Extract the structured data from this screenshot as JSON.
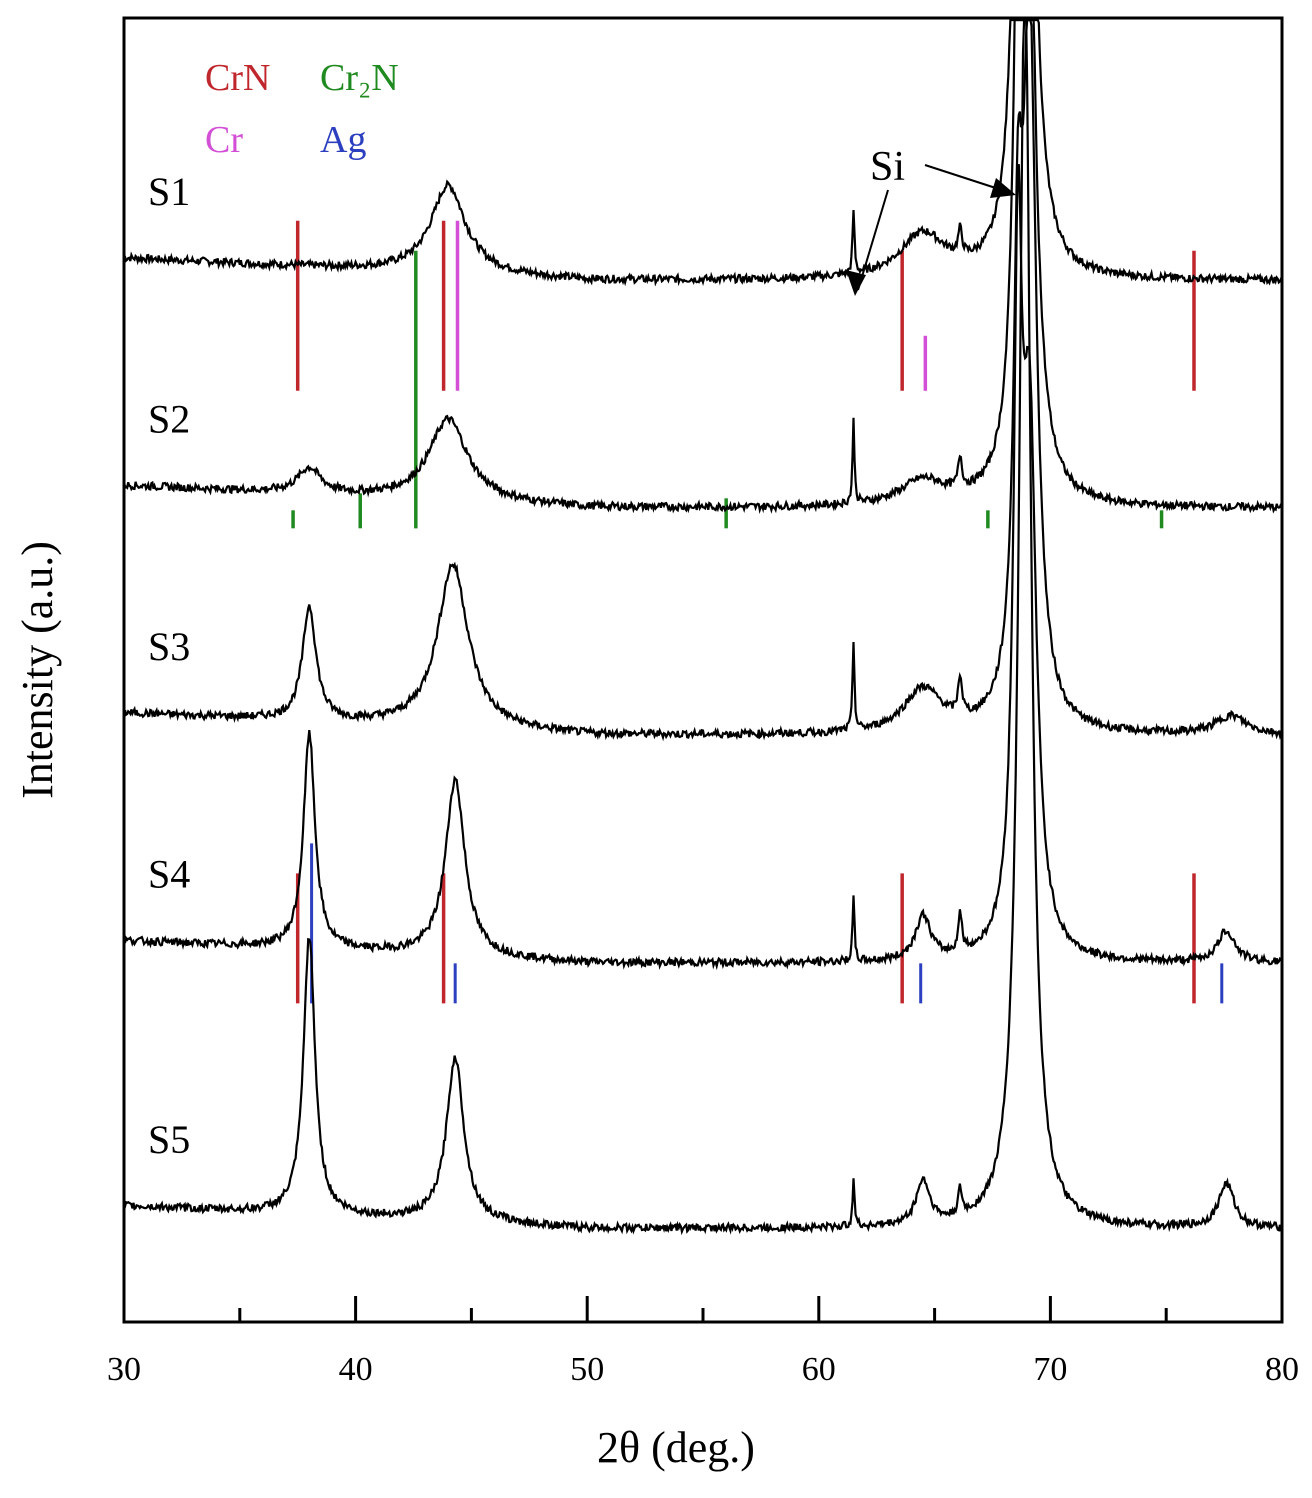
{
  "chart_data": {
    "type": "line",
    "title": "",
    "xlabel": "2θ (deg.)",
    "ylabel": "Intensity (a.u.)",
    "xlim": [
      30,
      80
    ],
    "x_ticks": [
      "30",
      "40",
      "50",
      "60",
      "70",
      "80"
    ],
    "legend": [
      {
        "name": "CrN",
        "color": "#c0272d"
      },
      {
        "name": "Cr₂N",
        "color": "#1f8a1f"
      },
      {
        "name": "Cr",
        "color": "#d24fd6"
      },
      {
        "name": "Ag",
        "color": "#2b3fbf"
      }
    ],
    "annotation": "Si",
    "series": [
      {
        "name": "S1",
        "baseline": 0.8,
        "peaks": [
          [
            44.0,
            0.07,
            0.9
          ],
          [
            61.5,
            0.05,
            0.05
          ],
          [
            64.5,
            0.035,
            1.2
          ],
          [
            66.1,
            0.02,
            0.1
          ],
          [
            68.6,
            0.35,
            0.22
          ],
          [
            69.0,
            0.55,
            0.35
          ]
        ]
      },
      {
        "name": "S2",
        "baseline": 0.62,
        "peaks": [
          [
            38.0,
            0.02,
            0.6
          ],
          [
            44.0,
            0.065,
            1.0
          ],
          [
            61.5,
            0.065,
            0.05
          ],
          [
            64.5,
            0.02,
            1.2
          ],
          [
            66.1,
            0.025,
            0.1
          ],
          [
            68.6,
            0.3,
            0.22
          ],
          [
            69.0,
            0.6,
            0.35
          ]
        ]
      },
      {
        "name": "S3",
        "baseline": 0.44,
        "peaks": [
          [
            38.0,
            0.09,
            0.35
          ],
          [
            44.2,
            0.13,
            0.8
          ],
          [
            61.5,
            0.07,
            0.05
          ],
          [
            64.5,
            0.035,
            1.0
          ],
          [
            66.1,
            0.03,
            0.1
          ],
          [
            68.6,
            0.3,
            0.22
          ],
          [
            69.1,
            0.55,
            0.35
          ],
          [
            77.8,
            0.015,
            0.8
          ]
        ]
      },
      {
        "name": "S4",
        "baseline": 0.26,
        "peaks": [
          [
            38.0,
            0.17,
            0.3
          ],
          [
            44.3,
            0.14,
            0.5
          ],
          [
            61.5,
            0.05,
            0.05
          ],
          [
            64.5,
            0.035,
            0.4
          ],
          [
            66.1,
            0.03,
            0.1
          ],
          [
            68.6,
            0.5,
            0.22
          ],
          [
            69.1,
            0.4,
            0.35
          ],
          [
            77.6,
            0.025,
            0.45
          ]
        ]
      },
      {
        "name": "S5",
        "baseline": 0.05,
        "peaks": [
          [
            38.0,
            0.22,
            0.3
          ],
          [
            44.3,
            0.13,
            0.45
          ],
          [
            61.5,
            0.04,
            0.05
          ],
          [
            64.5,
            0.035,
            0.35
          ],
          [
            66.1,
            0.02,
            0.1
          ],
          [
            68.9,
            1.0,
            0.3
          ],
          [
            77.6,
            0.035,
            0.4
          ]
        ]
      }
    ],
    "reference_lines": [
      {
        "phase": "CrN",
        "positions": [
          37.5,
          43.8,
          63.6,
          76.2
        ],
        "group": "S1"
      },
      {
        "phase": "Cr2N",
        "positions": [
          42.6
        ],
        "group": "S1-S2"
      },
      {
        "phase": "Cr",
        "positions": [
          44.4,
          64.6
        ],
        "group": "S1"
      },
      {
        "phase": "Cr2N",
        "positions": [
          37.3,
          40.2,
          56.0,
          67.3,
          74.8
        ],
        "group": "S2"
      },
      {
        "phase": "CrN",
        "positions": [
          37.5,
          43.8,
          63.6,
          76.2
        ],
        "group": "S4"
      },
      {
        "phase": "Ag",
        "positions": [
          38.1,
          44.3,
          64.4,
          77.4
        ],
        "group": "S4"
      }
    ]
  }
}
